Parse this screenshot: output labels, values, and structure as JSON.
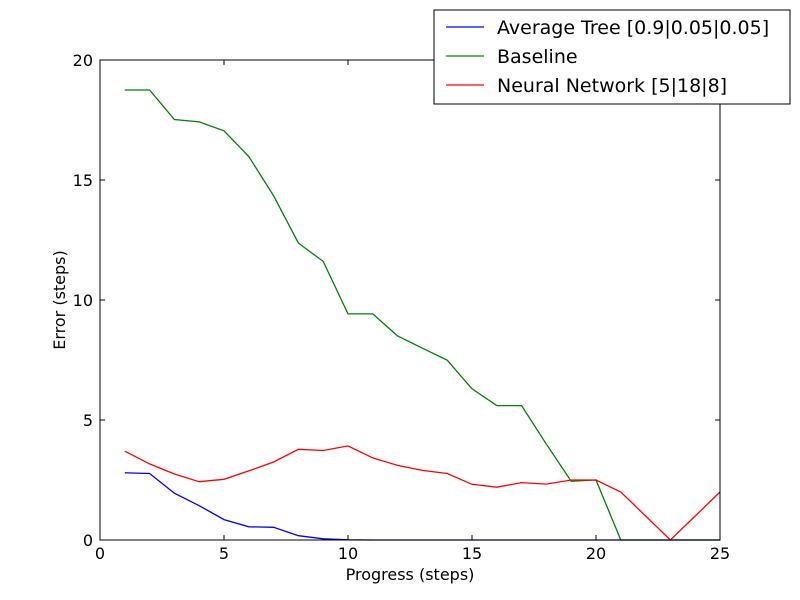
{
  "chart_data": {
    "type": "line",
    "xlabel": "Progress (steps)",
    "ylabel": "Error (steps)",
    "xlim": [
      0,
      25
    ],
    "ylim": [
      0,
      20
    ],
    "xticks": [
      "0",
      "5",
      "10",
      "15",
      "20",
      "25"
    ],
    "yticks": [
      "0",
      "5",
      "10",
      "15",
      "20"
    ],
    "grid": false,
    "legend_position": "top-right",
    "series": [
      {
        "name": "Average Tree [0.9|0.05|0.05]",
        "color": "#0000ff",
        "x": [
          1,
          2,
          3,
          4,
          5,
          6,
          7,
          8,
          9,
          10,
          11,
          12,
          13,
          14,
          15,
          16,
          17,
          18,
          19,
          20,
          21,
          22,
          23,
          24,
          25
        ],
        "y": [
          2.8,
          2.77,
          1.95,
          1.43,
          0.85,
          0.55,
          0.53,
          0.18,
          0.05,
          0.01,
          0,
          0,
          0,
          0,
          0,
          0,
          0,
          0,
          0,
          0,
          0,
          0,
          0,
          0,
          0
        ]
      },
      {
        "name": "Baseline",
        "color": "#008000",
        "x": [
          1,
          2,
          3,
          4,
          5,
          6,
          7,
          8,
          9,
          10,
          11,
          12,
          13,
          14,
          15,
          16,
          17,
          18,
          19,
          20,
          21,
          22,
          23,
          24,
          25
        ],
        "y": [
          18.75,
          18.75,
          17.52,
          17.42,
          17.05,
          15.98,
          14.34,
          12.37,
          11.61,
          9.42,
          9.42,
          8.5,
          7.99,
          7.49,
          6.3,
          5.6,
          5.6,
          3.99,
          2.45,
          2.5,
          0,
          0,
          0,
          0,
          0
        ]
      },
      {
        "name": "Neural Network [5|18|8]",
        "color": "#ff0000",
        "x": [
          1,
          2,
          3,
          4,
          5,
          6,
          7,
          8,
          9,
          10,
          11,
          12,
          13,
          14,
          15,
          16,
          17,
          18,
          19,
          20,
          21,
          22,
          23,
          24,
          25
        ],
        "y": [
          3.7,
          3.17,
          2.75,
          2.43,
          2.53,
          2.88,
          3.25,
          3.78,
          3.73,
          3.92,
          3.42,
          3.11,
          2.9,
          2.77,
          2.32,
          2.2,
          2.39,
          2.33,
          2.5,
          2.5,
          2.0,
          1.0,
          0,
          1.0,
          2.0
        ]
      }
    ]
  }
}
